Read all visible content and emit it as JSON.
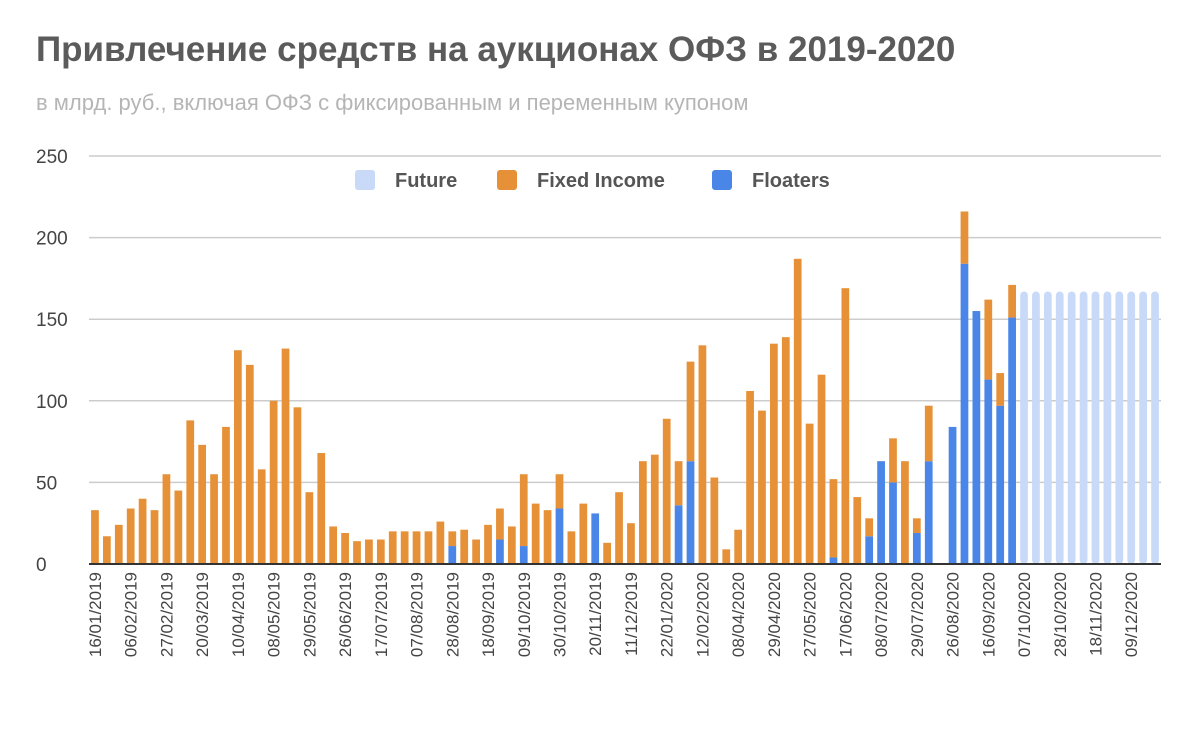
{
  "chart_data": {
    "type": "bar",
    "stacked": true,
    "title": "Привлечение средств на аукционах ОФЗ в 2019-2020",
    "subtitle": "в млрд. руб., включая ОФЗ с фиксированным и переменным купоном",
    "ylim": [
      0,
      250
    ],
    "y_ticks": [
      0,
      50,
      100,
      150,
      200,
      250
    ],
    "grid": true,
    "legend_position": "top",
    "x_tick_labels": [
      "16/01/2019",
      "06/02/2019",
      "27/02/2019",
      "20/03/2019",
      "10/04/2019",
      "08/05/2019",
      "29/05/2019",
      "26/06/2019",
      "17/07/2019",
      "07/08/2019",
      "28/08/2019",
      "18/09/2019",
      "09/10/2019",
      "30/10/2019",
      "20/11/2019",
      "11/12/2019",
      "22/01/2020",
      "12/02/2020",
      "08/04/2020",
      "29/04/2020",
      "27/05/2020",
      "17/06/2020",
      "08/07/2020",
      "29/07/2020",
      "26/08/2020",
      "16/09/2020",
      "07/10/2020",
      "28/10/2020",
      "18/11/2020",
      "09/12/2020"
    ],
    "x_tick_every_n_bars": 3,
    "series": [
      {
        "name": "Future",
        "color": "#c9daf8",
        "values": [
          0,
          0,
          0,
          0,
          0,
          0,
          0,
          0,
          0,
          0,
          0,
          0,
          0,
          0,
          0,
          0,
          0,
          0,
          0,
          0,
          0,
          0,
          0,
          0,
          0,
          0,
          0,
          0,
          0,
          0,
          0,
          0,
          0,
          0,
          0,
          0,
          0,
          0,
          0,
          0,
          0,
          0,
          0,
          0,
          0,
          0,
          0,
          0,
          0,
          0,
          0,
          0,
          0,
          0,
          0,
          0,
          0,
          0,
          0,
          0,
          0,
          0,
          0,
          0,
          0,
          0,
          0,
          0,
          0,
          0,
          0,
          0,
          0,
          0,
          0,
          0,
          0,
          0,
          167,
          167,
          167,
          167,
          167,
          167,
          167,
          167,
          167,
          167,
          167,
          167
        ]
      },
      {
        "name": "Fixed Income",
        "color": "#e69138",
        "values": [
          33,
          17,
          24,
          34,
          40,
          33,
          55,
          45,
          88,
          73,
          55,
          84,
          131,
          122,
          58,
          100,
          132,
          96,
          44,
          68,
          23,
          19,
          14,
          15,
          15,
          20,
          20,
          20,
          20,
          26,
          9,
          21,
          15,
          24,
          19,
          23,
          44,
          37,
          33,
          21,
          20,
          37,
          0,
          13,
          44,
          25,
          63,
          67,
          89,
          27,
          61,
          134,
          53,
          9,
          21,
          106,
          94,
          135,
          139,
          187,
          86,
          116,
          48,
          169,
          41,
          11,
          0,
          27,
          63,
          9,
          34,
          0,
          0,
          32,
          0,
          49,
          20,
          20,
          0,
          0,
          0,
          0,
          0,
          0,
          0,
          0,
          0,
          0,
          0,
          0
        ]
      },
      {
        "name": "Floaters",
        "color": "#4a86e8",
        "values": [
          0,
          0,
          0,
          0,
          0,
          0,
          0,
          0,
          0,
          0,
          0,
          0,
          0,
          0,
          0,
          0,
          0,
          0,
          0,
          0,
          0,
          0,
          0,
          0,
          0,
          0,
          0,
          0,
          0,
          0,
          11,
          0,
          0,
          0,
          15,
          0,
          11,
          0,
          0,
          34,
          0,
          0,
          31,
          0,
          0,
          0,
          0,
          0,
          0,
          36,
          63,
          0,
          0,
          0,
          0,
          0,
          0,
          0,
          0,
          0,
          0,
          0,
          4,
          0,
          0,
          17,
          63,
          50,
          0,
          19,
          63,
          0,
          84,
          184,
          155,
          113,
          97,
          151,
          0,
          0,
          0,
          0,
          0,
          0,
          0,
          0,
          0,
          0,
          0,
          0
        ]
      }
    ]
  }
}
